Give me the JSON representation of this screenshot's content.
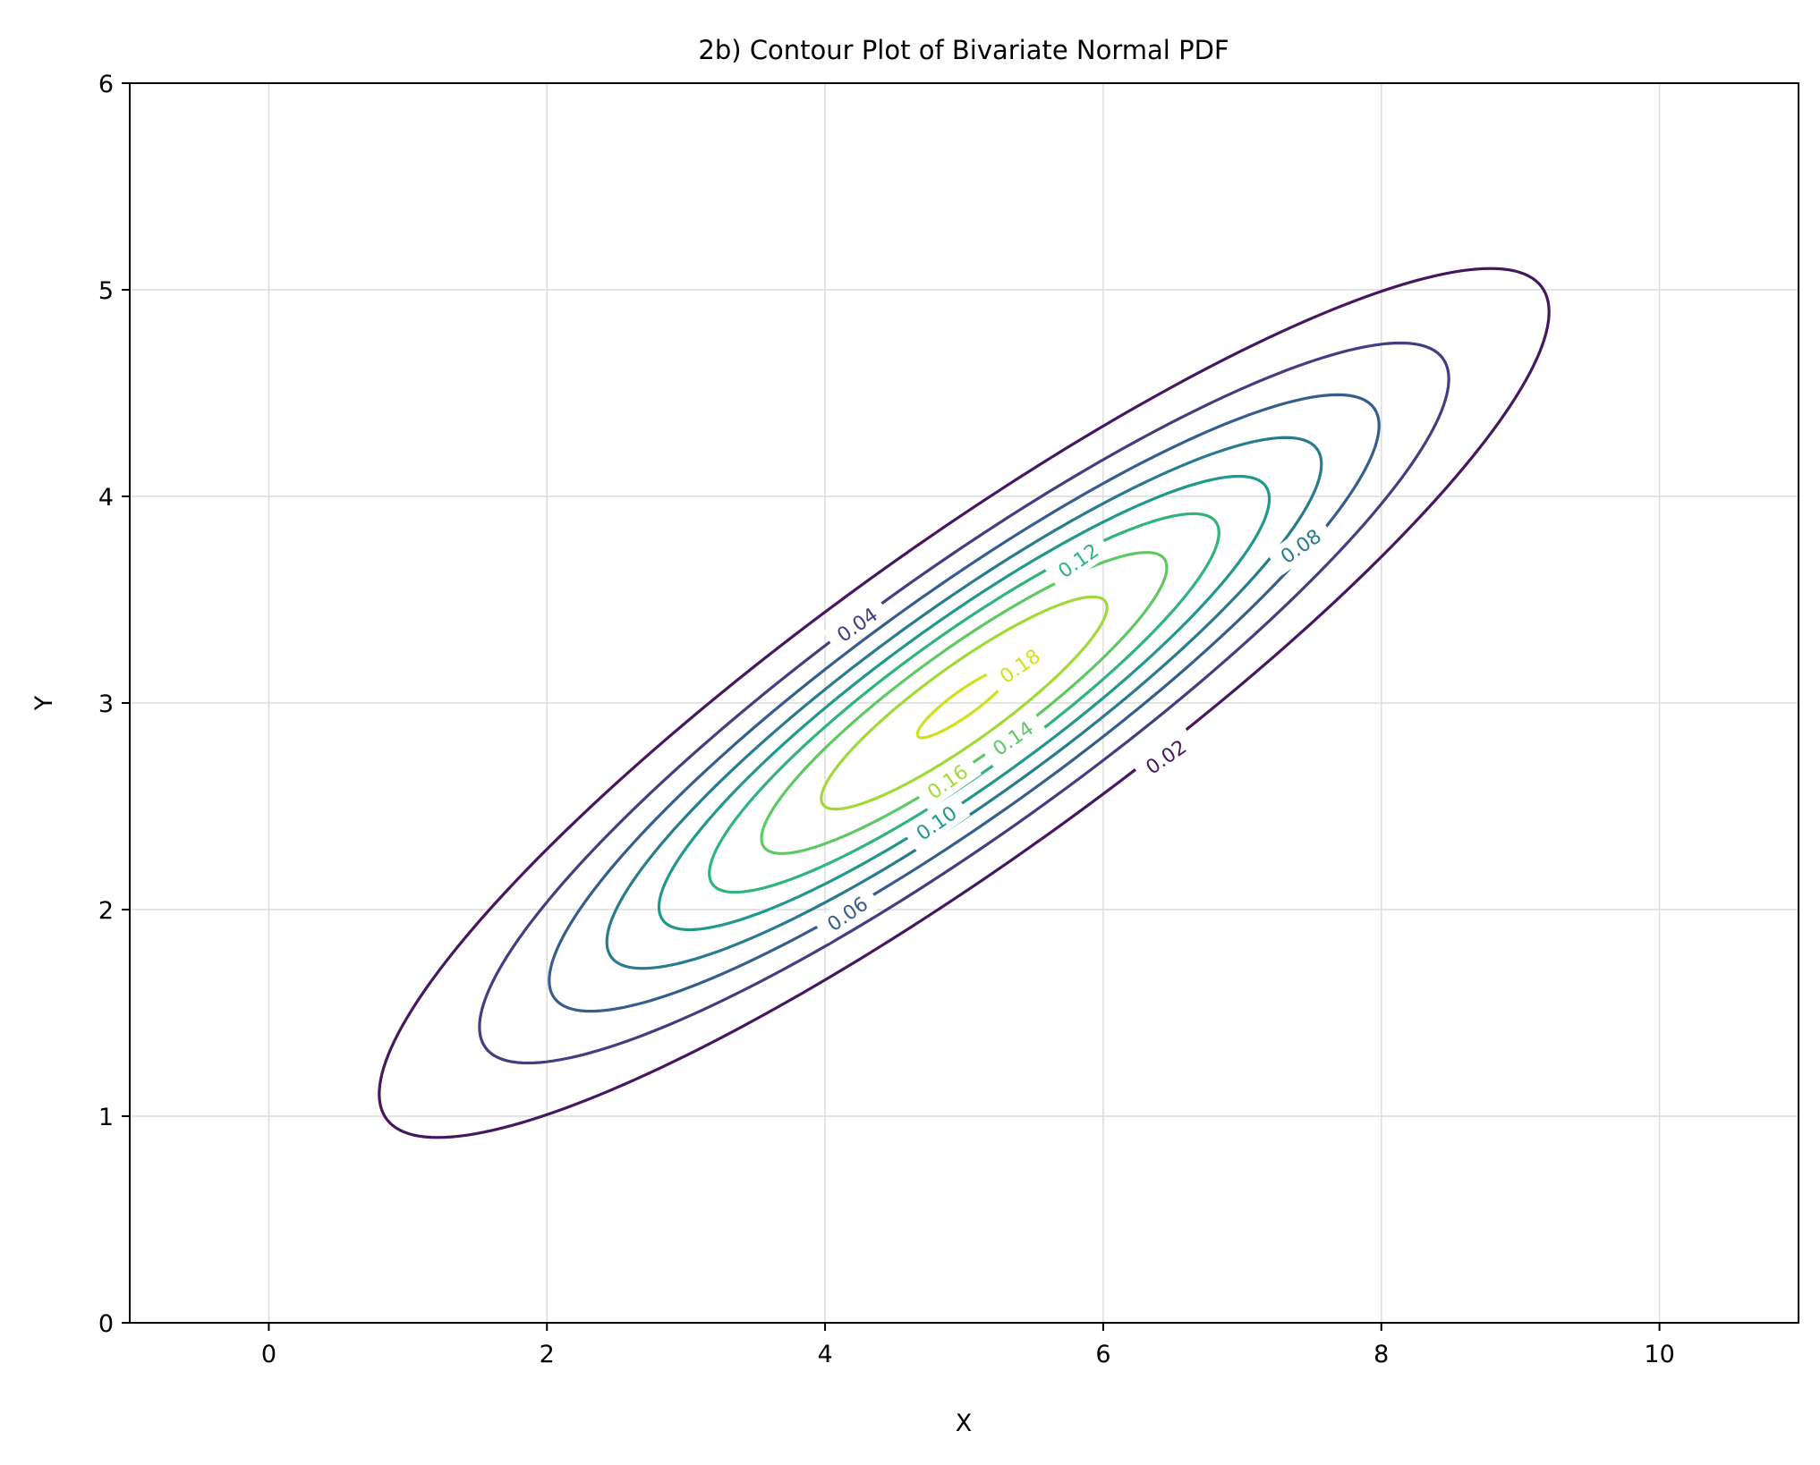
{
  "chart_data": {
    "type": "contour",
    "title": "2b) Contour Plot of Bivariate Normal PDF",
    "xlabel": "X",
    "ylabel": "Y",
    "xlim": [
      -1,
      11
    ],
    "ylim": [
      0,
      6
    ],
    "xticks": [
      0,
      2,
      4,
      6,
      8,
      10
    ],
    "yticks": [
      0,
      1,
      2,
      3,
      4,
      5,
      6
    ],
    "grid": true,
    "distribution": {
      "mean": [
        5,
        3
      ],
      "covariance": [
        [
          4,
          1.8
        ],
        [
          1.8,
          1
        ]
      ]
    },
    "levels": [
      0.02,
      0.04,
      0.06,
      0.08,
      0.1,
      0.12,
      0.14,
      0.16,
      0.18
    ],
    "level_labels": [
      "0.02",
      "0.04",
      "0.06",
      "0.08",
      "0.10",
      "0.12",
      "0.14",
      "0.16",
      "0.18"
    ],
    "colors": [
      "#46175f",
      "#413f80",
      "#355e8d",
      "#287c8e",
      "#20988b",
      "#2eb47c",
      "#5ec962",
      "#a1da38",
      "#d0e11c"
    ],
    "labels_shown": [
      {
        "level": "0.02",
        "x": 6.45,
        "y": 2.74
      },
      {
        "level": "0.04",
        "x": 4.23,
        "y": 3.38
      },
      {
        "level": "0.06",
        "x": 4.16,
        "y": 1.98
      },
      {
        "level": "0.08",
        "x": 7.42,
        "y": 3.76
      },
      {
        "level": "0.10",
        "x": 4.8,
        "y": 2.42
      },
      {
        "level": "0.12",
        "x": 5.82,
        "y": 3.69
      },
      {
        "level": "0.14",
        "x": 5.35,
        "y": 2.83
      },
      {
        "level": "0.16",
        "x": 4.88,
        "y": 2.62
      },
      {
        "level": "0.18",
        "x": 5.4,
        "y": 3.18
      }
    ]
  }
}
